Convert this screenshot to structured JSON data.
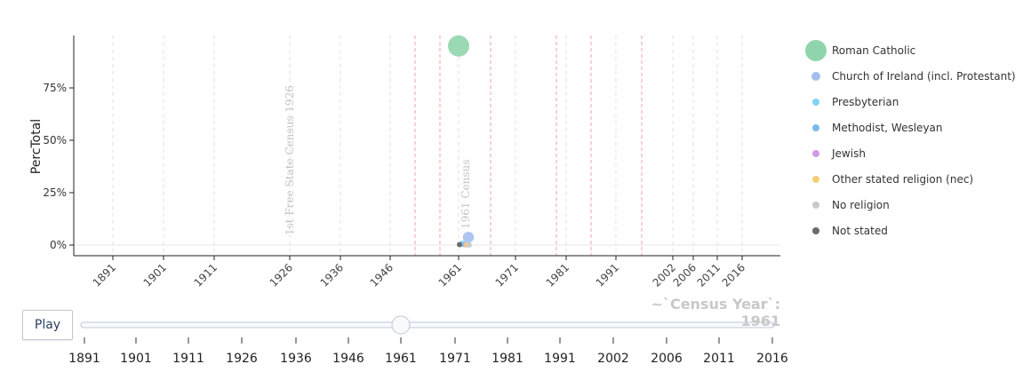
{
  "chart_data": {
    "type": "scatter",
    "ylabel": "PercTotal",
    "xlabel": "",
    "ylim": [
      -0.04,
      0.99
    ],
    "y_ticks": [
      0,
      0.25,
      0.5,
      0.75
    ],
    "y_tick_labels": [
      "0%",
      "25%",
      "50%",
      "75%"
    ],
    "x_categories": [
      "1891",
      "1901",
      "1911",
      "1926",
      "1936",
      "1946",
      "1961",
      "1971",
      "1981",
      "1991",
      "2002",
      "2006",
      "2011",
      "2016"
    ],
    "current_year": "1961",
    "series": [
      {
        "name": "Roman Catholic",
        "color": "#8fd5ab",
        "points": [
          {
            "x": "1961",
            "y": 0.95
          }
        ]
      },
      {
        "name": "Church of Ireland (incl. Protestant)",
        "color": "#a4bfee",
        "points": [
          {
            "x": "1961",
            "y": 0.037
          }
        ]
      },
      {
        "name": "Presbyterian",
        "color": "#7fd5f2",
        "points": [
          {
            "x": "1961",
            "y": 0.006
          }
        ]
      },
      {
        "name": "Methodist, Wesleyan",
        "color": "#7abbed",
        "points": [
          {
            "x": "1961",
            "y": 0.002
          }
        ]
      },
      {
        "name": "Jewish",
        "color": "#d39ae3",
        "points": [
          {
            "x": "1961",
            "y": 0.001
          }
        ]
      },
      {
        "name": "Other stated religion (nec)",
        "color": "#f4cf7a",
        "points": [
          {
            "x": "1961",
            "y": 0.001
          }
        ]
      },
      {
        "name": "No religion",
        "color": "#c9c9c9",
        "points": [
          {
            "x": "1961",
            "y": 0.0
          }
        ]
      },
      {
        "name": "Not stated",
        "color": "#6b6b6b",
        "points": [
          {
            "x": "1961",
            "y": 0.002
          }
        ]
      }
    ],
    "annotations": [
      "1st Free State Census 1926",
      "1961 Census"
    ],
    "grid": true,
    "legend_position": "right"
  },
  "controls": {
    "play_label": "Play",
    "slider_label": "~`Census Year`: 1961",
    "slider_steps": [
      "1891",
      "1901",
      "1911",
      "1926",
      "1936",
      "1946",
      "1961",
      "1971",
      "1981",
      "1991",
      "2002",
      "2006",
      "2011",
      "2016"
    ],
    "slider_active": "1961"
  }
}
